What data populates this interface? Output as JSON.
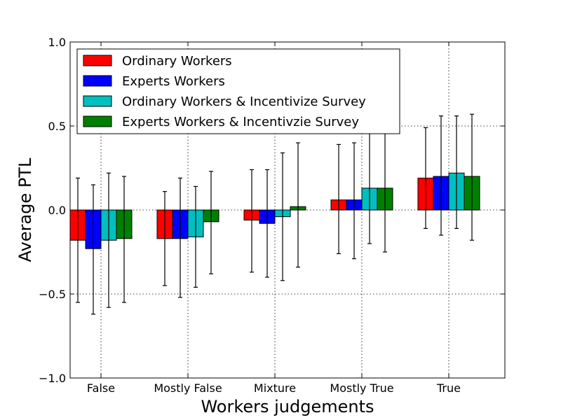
{
  "chart_data": {
    "type": "bar",
    "title": "",
    "xlabel": "Workers judgements",
    "ylabel": "Average PTL",
    "ylim": [
      -1.0,
      1.0
    ],
    "yticks": [
      "−1.0",
      "−0.5",
      "0.0",
      "0.5",
      "1.0"
    ],
    "ytick_values": [
      -1.0,
      -0.5,
      0.0,
      0.5,
      1.0
    ],
    "grid": true,
    "legend_position": "top-left",
    "categories": [
      "False",
      "Mostly False",
      "Mixture",
      "Mostly True",
      "True"
    ],
    "series": [
      {
        "name": "Ordinary Workers",
        "color": "#ff0000",
        "values": [
          -0.18,
          -0.17,
          -0.06,
          0.06,
          0.19
        ],
        "error_low": [
          -0.55,
          -0.45,
          -0.37,
          -0.26,
          -0.11
        ],
        "error_high": [
          0.19,
          0.11,
          0.24,
          0.39,
          0.49
        ]
      },
      {
        "name": "Experts Workers",
        "color": "#0000ff",
        "values": [
          -0.23,
          -0.17,
          -0.08,
          0.06,
          0.2
        ],
        "error_low": [
          -0.62,
          -0.52,
          -0.4,
          -0.29,
          -0.15
        ],
        "error_high": [
          0.15,
          0.19,
          0.24,
          0.4,
          0.56
        ]
      },
      {
        "name": "Ordinary Workers & Incentivize Survey",
        "color": "#00bfbf",
        "values": [
          -0.18,
          -0.16,
          -0.04,
          0.13,
          0.22
        ],
        "error_low": [
          -0.58,
          -0.46,
          -0.42,
          -0.2,
          -0.11
        ],
        "error_high": [
          0.22,
          0.14,
          0.34,
          0.47,
          0.56
        ]
      },
      {
        "name": "Experts Workers & Incentivzie Survey",
        "color": "#008000",
        "values": [
          -0.17,
          -0.07,
          0.02,
          0.13,
          0.2
        ],
        "error_low": [
          -0.55,
          -0.38,
          -0.34,
          -0.25,
          -0.18
        ],
        "error_high": [
          0.2,
          0.23,
          0.4,
          0.51,
          0.57
        ]
      }
    ]
  }
}
